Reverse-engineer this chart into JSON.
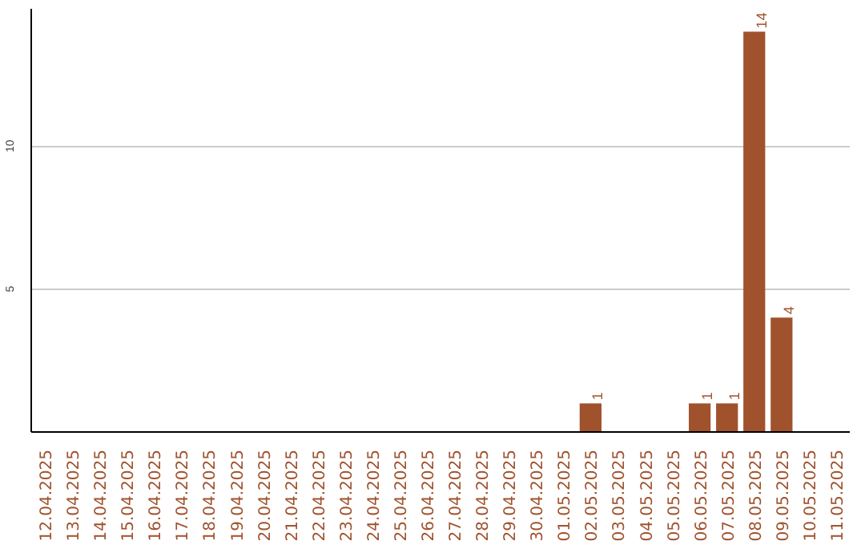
{
  "chart_data": {
    "type": "bar",
    "categories": [
      "12.04.2025",
      "13.04.2025",
      "14.04.2025",
      "15.04.2025",
      "16.04.2025",
      "17.04.2025",
      "18.04.2025",
      "19.04.2025",
      "20.04.2025",
      "21.04.2025",
      "22.04.2025",
      "23.04.2025",
      "24.04.2025",
      "25.04.2025",
      "26.04.2025",
      "27.04.2025",
      "28.04.2025",
      "29.04.2025",
      "30.04.2025",
      "01.05.2025",
      "02.05.2025",
      "03.05.2025",
      "04.05.2025",
      "05.05.2025",
      "06.05.2025",
      "07.05.2025",
      "08.05.2025",
      "09.05.2025",
      "10.05.2025",
      "11.05.2025"
    ],
    "values": [
      0,
      0,
      0,
      0,
      0,
      0,
      0,
      0,
      0,
      0,
      0,
      0,
      0,
      0,
      0,
      0,
      0,
      0,
      0,
      0,
      1,
      0,
      0,
      0,
      1,
      1,
      14,
      4,
      0,
      0
    ],
    "value_labels": [
      null,
      null,
      null,
      null,
      null,
      null,
      null,
      null,
      null,
      null,
      null,
      null,
      null,
      null,
      null,
      null,
      null,
      null,
      null,
      null,
      "1",
      null,
      null,
      null,
      "1",
      "1",
      "14",
      "4",
      null,
      null
    ],
    "color": "#a0522d",
    "ylim": [
      0,
      14.8
    ],
    "yticks": [
      5,
      10
    ],
    "grid": "y"
  }
}
